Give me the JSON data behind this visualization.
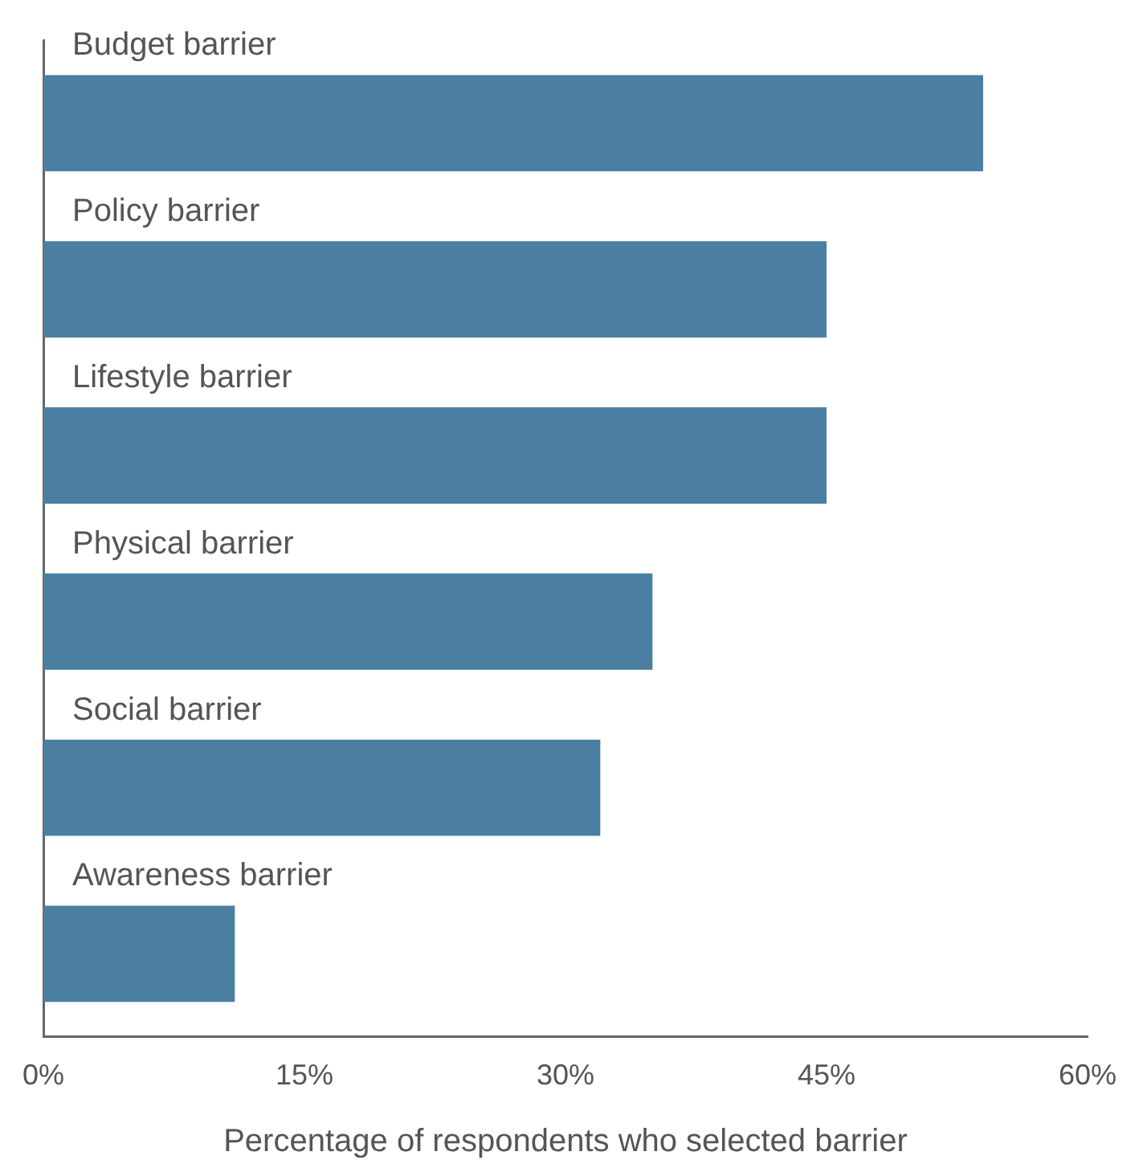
{
  "chart_data": {
    "type": "bar",
    "orientation": "horizontal",
    "categories": [
      "Budget barrier",
      "Policy barrier",
      "Lifestyle barrier",
      "Physical barrier",
      "Social barrier",
      "Awareness barrier"
    ],
    "values": [
      54,
      45,
      45,
      35,
      32,
      11
    ],
    "color": "#4a7fa2",
    "xlim": [
      0,
      60
    ],
    "xticks": [
      {
        "value": 0,
        "label": "0%"
      },
      {
        "value": 15,
        "label": "15%"
      },
      {
        "value": 30,
        "label": "30%"
      },
      {
        "value": 45,
        "label": "45%"
      },
      {
        "value": 60,
        "label": "60%"
      }
    ],
    "xlabel": "Percentage of respondents who selected barrier",
    "grid": false
  }
}
